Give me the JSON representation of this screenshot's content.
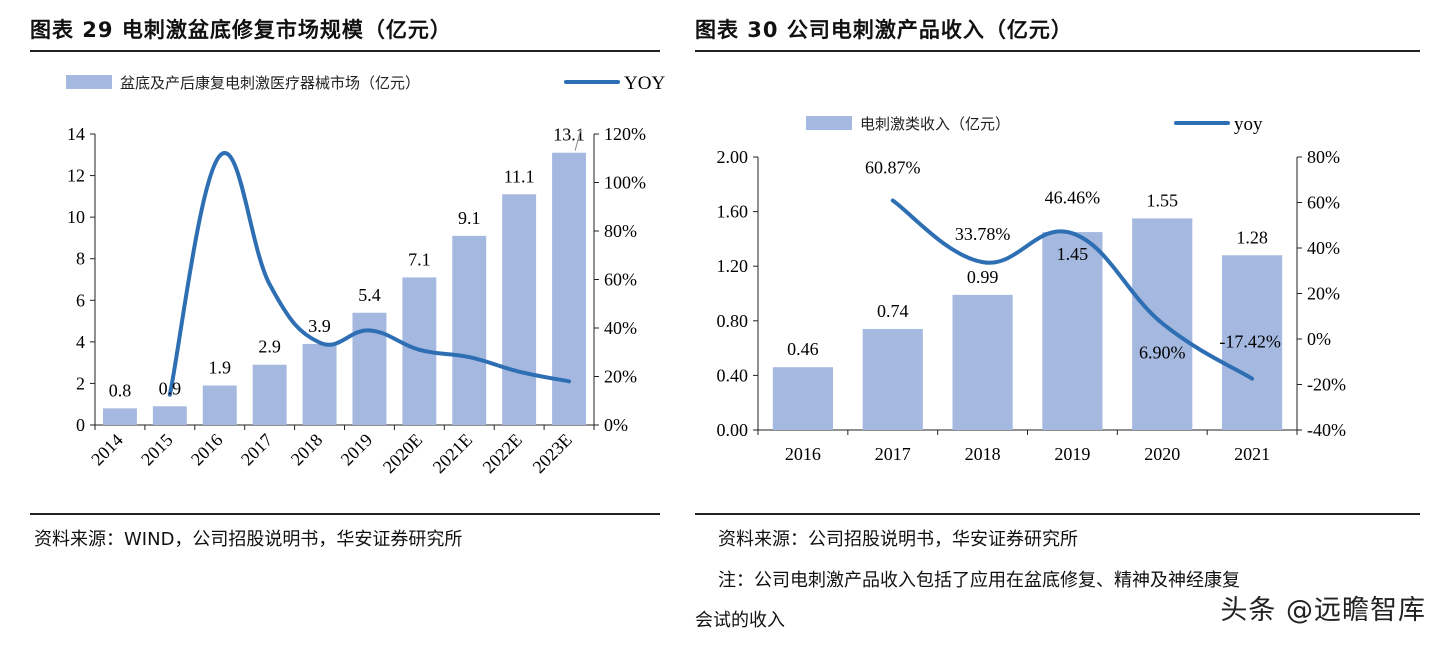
{
  "left_title": "图表 29 电刺激盆底修复市场规模（亿元）",
  "right_title": "图表 30 公司电刺激产品收入（亿元）",
  "left_source": "资料来源：WIND，公司招股说明书，华安证券研究所",
  "right_source": "资料来源：公司招股说明书，华安证券研究所",
  "right_note_line1": "注：公司电刺激产品收入包括了应用在盆底修复、精神及神经康复",
  "right_note_line2": "会试的收入",
  "watermark": "头条 @远瞻智库",
  "colors": {
    "bar": "#a4b8e0",
    "line": "#2e6fb4",
    "axis": "#222222"
  },
  "chart_data": [
    {
      "type": "bar",
      "categories": [
        "2014",
        "2015",
        "2016",
        "2017",
        "2018",
        "2019",
        "2020E",
        "2021E",
        "2022E",
        "2023E"
      ],
      "series": [
        {
          "name": "盆底及产后康复电刺激医疗器械市场（亿元）",
          "axis": "left",
          "values": [
            0.8,
            0.9,
            1.9,
            2.9,
            3.9,
            5.4,
            7.1,
            9.1,
            11.1,
            13.1
          ]
        },
        {
          "name": "YOY",
          "type": "line",
          "axis": "right",
          "values": [
            null,
            12.5,
            111,
            58,
            34,
            39,
            31,
            28,
            22,
            18
          ]
        }
      ],
      "data_labels": [
        "0.8",
        "0.9",
        "1.9",
        "2.9",
        "3.9",
        "5.4",
        "7.1",
        "9.1",
        "11.1",
        "13.1"
      ],
      "ylim": [
        0,
        14
      ],
      "yticks": [
        "0",
        "2",
        "4",
        "6",
        "8",
        "10",
        "12",
        "14"
      ],
      "y2lim": [
        0,
        120
      ],
      "y2ticks": [
        "0%",
        "20%",
        "40%",
        "60%",
        "80%",
        "100%",
        "120%"
      ],
      "legend": "top",
      "grid": false
    },
    {
      "type": "bar",
      "categories": [
        "2016",
        "2017",
        "2018",
        "2019",
        "2020",
        "2021"
      ],
      "series": [
        {
          "name": "电刺激类收入（亿元）",
          "axis": "left",
          "values": [
            0.46,
            0.74,
            0.99,
            1.45,
            1.55,
            1.28
          ]
        },
        {
          "name": "yoy",
          "type": "line",
          "axis": "right",
          "values": [
            null,
            60.87,
            33.78,
            46.46,
            6.9,
            -17.42
          ]
        }
      ],
      "data_labels": [
        "0.46",
        "0.74",
        "0.99",
        "1.45",
        "1.55",
        "1.28"
      ],
      "line_labels": [
        "",
        "60.87%",
        "33.78%",
        "46.46%",
        "6.90%",
        "-17.42%"
      ],
      "ylim": [
        0,
        2.0
      ],
      "yticks": [
        "0.00",
        "0.40",
        "0.80",
        "1.20",
        "1.60",
        "2.00"
      ],
      "y2lim": [
        -40,
        80
      ],
      "y2ticks": [
        "-40%",
        "-20%",
        "0%",
        "20%",
        "40%",
        "60%",
        "80%"
      ],
      "legend": "top",
      "grid": false
    }
  ]
}
